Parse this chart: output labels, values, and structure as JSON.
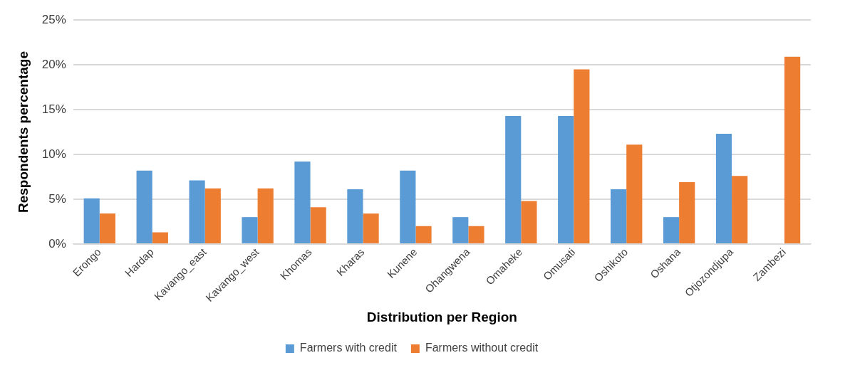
{
  "chart_data": {
    "type": "bar",
    "xlabel": "Distribution per Region",
    "ylabel": "Respondents percentage",
    "categories": [
      "Erongo",
      "Hardap",
      "Kavango_east",
      "Kavango_west",
      "Khomas",
      "Kharas",
      "Kunene",
      "Ohangwena",
      "Omaheke",
      "Omusati",
      "Oshikoto",
      "Oshana",
      "Otjozondjupa",
      "Zambezi"
    ],
    "series": [
      {
        "name": "Farmers with credit",
        "color": "#5b9bd5",
        "values": [
          5.1,
          8.2,
          7.1,
          3.0,
          9.2,
          6.1,
          8.2,
          3.0,
          14.3,
          14.3,
          6.1,
          3.0,
          12.3,
          0
        ]
      },
      {
        "name": "Farmers without credit",
        "color": "#ed7d31",
        "values": [
          3.4,
          1.3,
          6.2,
          6.2,
          4.1,
          3.4,
          2.0,
          2.0,
          4.8,
          19.5,
          11.1,
          6.9,
          7.6,
          20.9
        ]
      }
    ],
    "ylim": [
      0,
      25
    ],
    "yticks": [
      {
        "value": 0,
        "label": "0%"
      },
      {
        "value": 5,
        "label": "5%"
      },
      {
        "value": 10,
        "label": "10%"
      },
      {
        "value": 15,
        "label": "15%"
      },
      {
        "value": 20,
        "label": "20%"
      },
      {
        "value": 25,
        "label": "25%"
      }
    ],
    "grid": "y",
    "legend": "bottom"
  }
}
